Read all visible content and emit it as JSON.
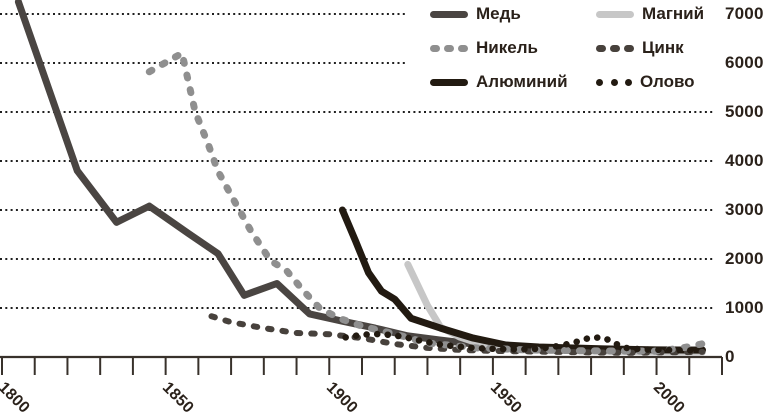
{
  "colors": {
    "background": "#ffffff",
    "axis": "#38312b",
    "grid": "#1f1f1f",
    "text": "#2a211a"
  },
  "chart_data": {
    "type": "line",
    "title": "",
    "legend_position": "top-right",
    "x_axis": {
      "labeled_ticks": [
        1800,
        1850,
        1900,
        1950,
        2000
      ],
      "minor_tick_step": 10,
      "range": [
        1800,
        2020
      ]
    },
    "y_axis": {
      "side": "right",
      "ticks": [
        7000,
        6000,
        5000,
        4000,
        3000,
        2000,
        1000,
        0
      ],
      "range": [
        0,
        7000
      ],
      "gridlines": [
        {
          "value": 7000,
          "x_end": 408
        },
        {
          "value": 6000,
          "x_end": 408
        },
        {
          "value": 5000,
          "x_end": 714
        },
        {
          "value": 4000,
          "x_end": 714
        },
        {
          "value": 3000,
          "x_end": 714
        },
        {
          "value": 2000,
          "x_end": 714
        },
        {
          "value": 1000,
          "x_end": 714
        }
      ]
    },
    "series": [
      {
        "key": "copper",
        "name": "Медь",
        "style": "solid",
        "color": "#4a4542",
        "width": 7,
        "points": [
          [
            1805,
            7250
          ],
          [
            1823,
            3800
          ],
          [
            1835,
            2750
          ],
          [
            1845,
            3080
          ],
          [
            1857,
            2520
          ],
          [
            1866,
            2110
          ],
          [
            1874,
            1260
          ],
          [
            1884,
            1500
          ],
          [
            1894,
            880
          ],
          [
            1904,
            730
          ],
          [
            1914,
            590
          ],
          [
            1924,
            430
          ],
          [
            1934,
            345
          ],
          [
            1944,
            265
          ],
          [
            1954,
            205
          ],
          [
            1964,
            185
          ],
          [
            1974,
            165
          ],
          [
            1984,
            140
          ],
          [
            1994,
            125
          ],
          [
            2004,
            130
          ],
          [
            2014,
            145
          ]
        ]
      },
      {
        "key": "nickel",
        "name": "Никель",
        "style": "dashed",
        "color": "#8f8f8f",
        "width": 7,
        "points": [
          [
            1845,
            5820
          ],
          [
            1855,
            6200
          ],
          [
            1859,
            5010
          ],
          [
            1863,
            4340
          ],
          [
            1866,
            3790
          ],
          [
            1871,
            3180
          ],
          [
            1876,
            2580
          ],
          [
            1882,
            1970
          ],
          [
            1887,
            1760
          ],
          [
            1892,
            1360
          ],
          [
            1897,
            1000
          ],
          [
            1903,
            790
          ],
          [
            1910,
            630
          ],
          [
            1920,
            470
          ],
          [
            1930,
            285
          ],
          [
            1945,
            185
          ],
          [
            1960,
            145
          ],
          [
            1980,
            125
          ],
          [
            2000,
            120
          ],
          [
            2008,
            185
          ],
          [
            2014,
            270
          ]
        ]
      },
      {
        "key": "aluminium",
        "name": "Алюминий",
        "style": "solid",
        "color": "#221a11",
        "width": 7,
        "points": [
          [
            1904,
            3000
          ],
          [
            1908,
            2370
          ],
          [
            1912,
            1720
          ],
          [
            1916,
            1340
          ],
          [
            1920,
            1180
          ],
          [
            1925,
            790
          ],
          [
            1934,
            590
          ],
          [
            1944,
            385
          ],
          [
            1954,
            245
          ],
          [
            1964,
            205
          ],
          [
            1984,
            165
          ],
          [
            2000,
            145
          ],
          [
            2014,
            140
          ]
        ]
      },
      {
        "key": "magnesium",
        "name": "Магний",
        "style": "solid",
        "color": "#c7c7c7",
        "width": 7,
        "points": [
          [
            1924,
            1890
          ],
          [
            1930,
            1050
          ],
          [
            1934,
            610
          ],
          [
            1940,
            405
          ],
          [
            1950,
            185
          ],
          [
            1960,
            145
          ],
          [
            1980,
            125
          ],
          [
            2000,
            105
          ],
          [
            2014,
            100
          ]
        ]
      },
      {
        "key": "zinc",
        "name": "Цинк",
        "style": "dashed",
        "color": "#47413c",
        "width": 6,
        "points": [
          [
            1864,
            830
          ],
          [
            1870,
            710
          ],
          [
            1880,
            590
          ],
          [
            1890,
            490
          ],
          [
            1900,
            465
          ],
          [
            1910,
            385
          ],
          [
            1920,
            265
          ],
          [
            1930,
            185
          ],
          [
            1940,
            145
          ],
          [
            1950,
            125
          ],
          [
            1970,
            105
          ],
          [
            1990,
            85
          ],
          [
            2014,
            105
          ]
        ]
      },
      {
        "key": "tin",
        "name": "Олово",
        "style": "dotted",
        "color": "#221a11",
        "width": 6.5,
        "points": [
          [
            1905,
            400
          ],
          [
            1910,
            455
          ],
          [
            1916,
            470
          ],
          [
            1922,
            420
          ],
          [
            1928,
            330
          ],
          [
            1935,
            240
          ],
          [
            1945,
            180
          ],
          [
            1955,
            155
          ],
          [
            1962,
            160
          ],
          [
            1968,
            200
          ],
          [
            1974,
            280
          ],
          [
            1980,
            400
          ],
          [
            1984,
            390
          ],
          [
            1990,
            190
          ],
          [
            1996,
            150
          ],
          [
            2005,
            140
          ],
          [
            2013,
            130
          ]
        ]
      }
    ]
  }
}
